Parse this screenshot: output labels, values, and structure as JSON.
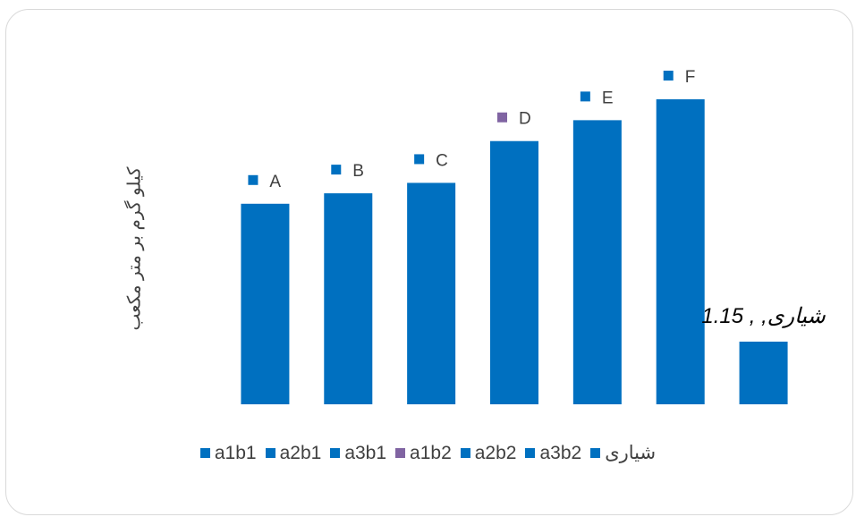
{
  "chart_data": {
    "type": "bar",
    "ylabel": "کیلو گرم بر متر مکعب",
    "categories": [
      "a1b1",
      "a2b1",
      "a3b1",
      "a1b2",
      "a2b2",
      "a3b2",
      "شیاری"
    ],
    "values": [
      1.81,
      1.86,
      1.91,
      2.11,
      2.21,
      2.31,
      1.15
    ],
    "ylim": [
      0.85,
      2.4
    ],
    "data_labels": [
      "A",
      "B",
      "C",
      "D",
      "E",
      "F",
      "شیاری, , 1.15"
    ],
    "colors": [
      "#0070c0",
      "#0070c0",
      "#0070c0",
      "#8064a2",
      "#0070c0",
      "#0070c0",
      "#0070c0"
    ],
    "bar_color": "#0070c0",
    "grid": false,
    "legend_position": "bottom"
  }
}
